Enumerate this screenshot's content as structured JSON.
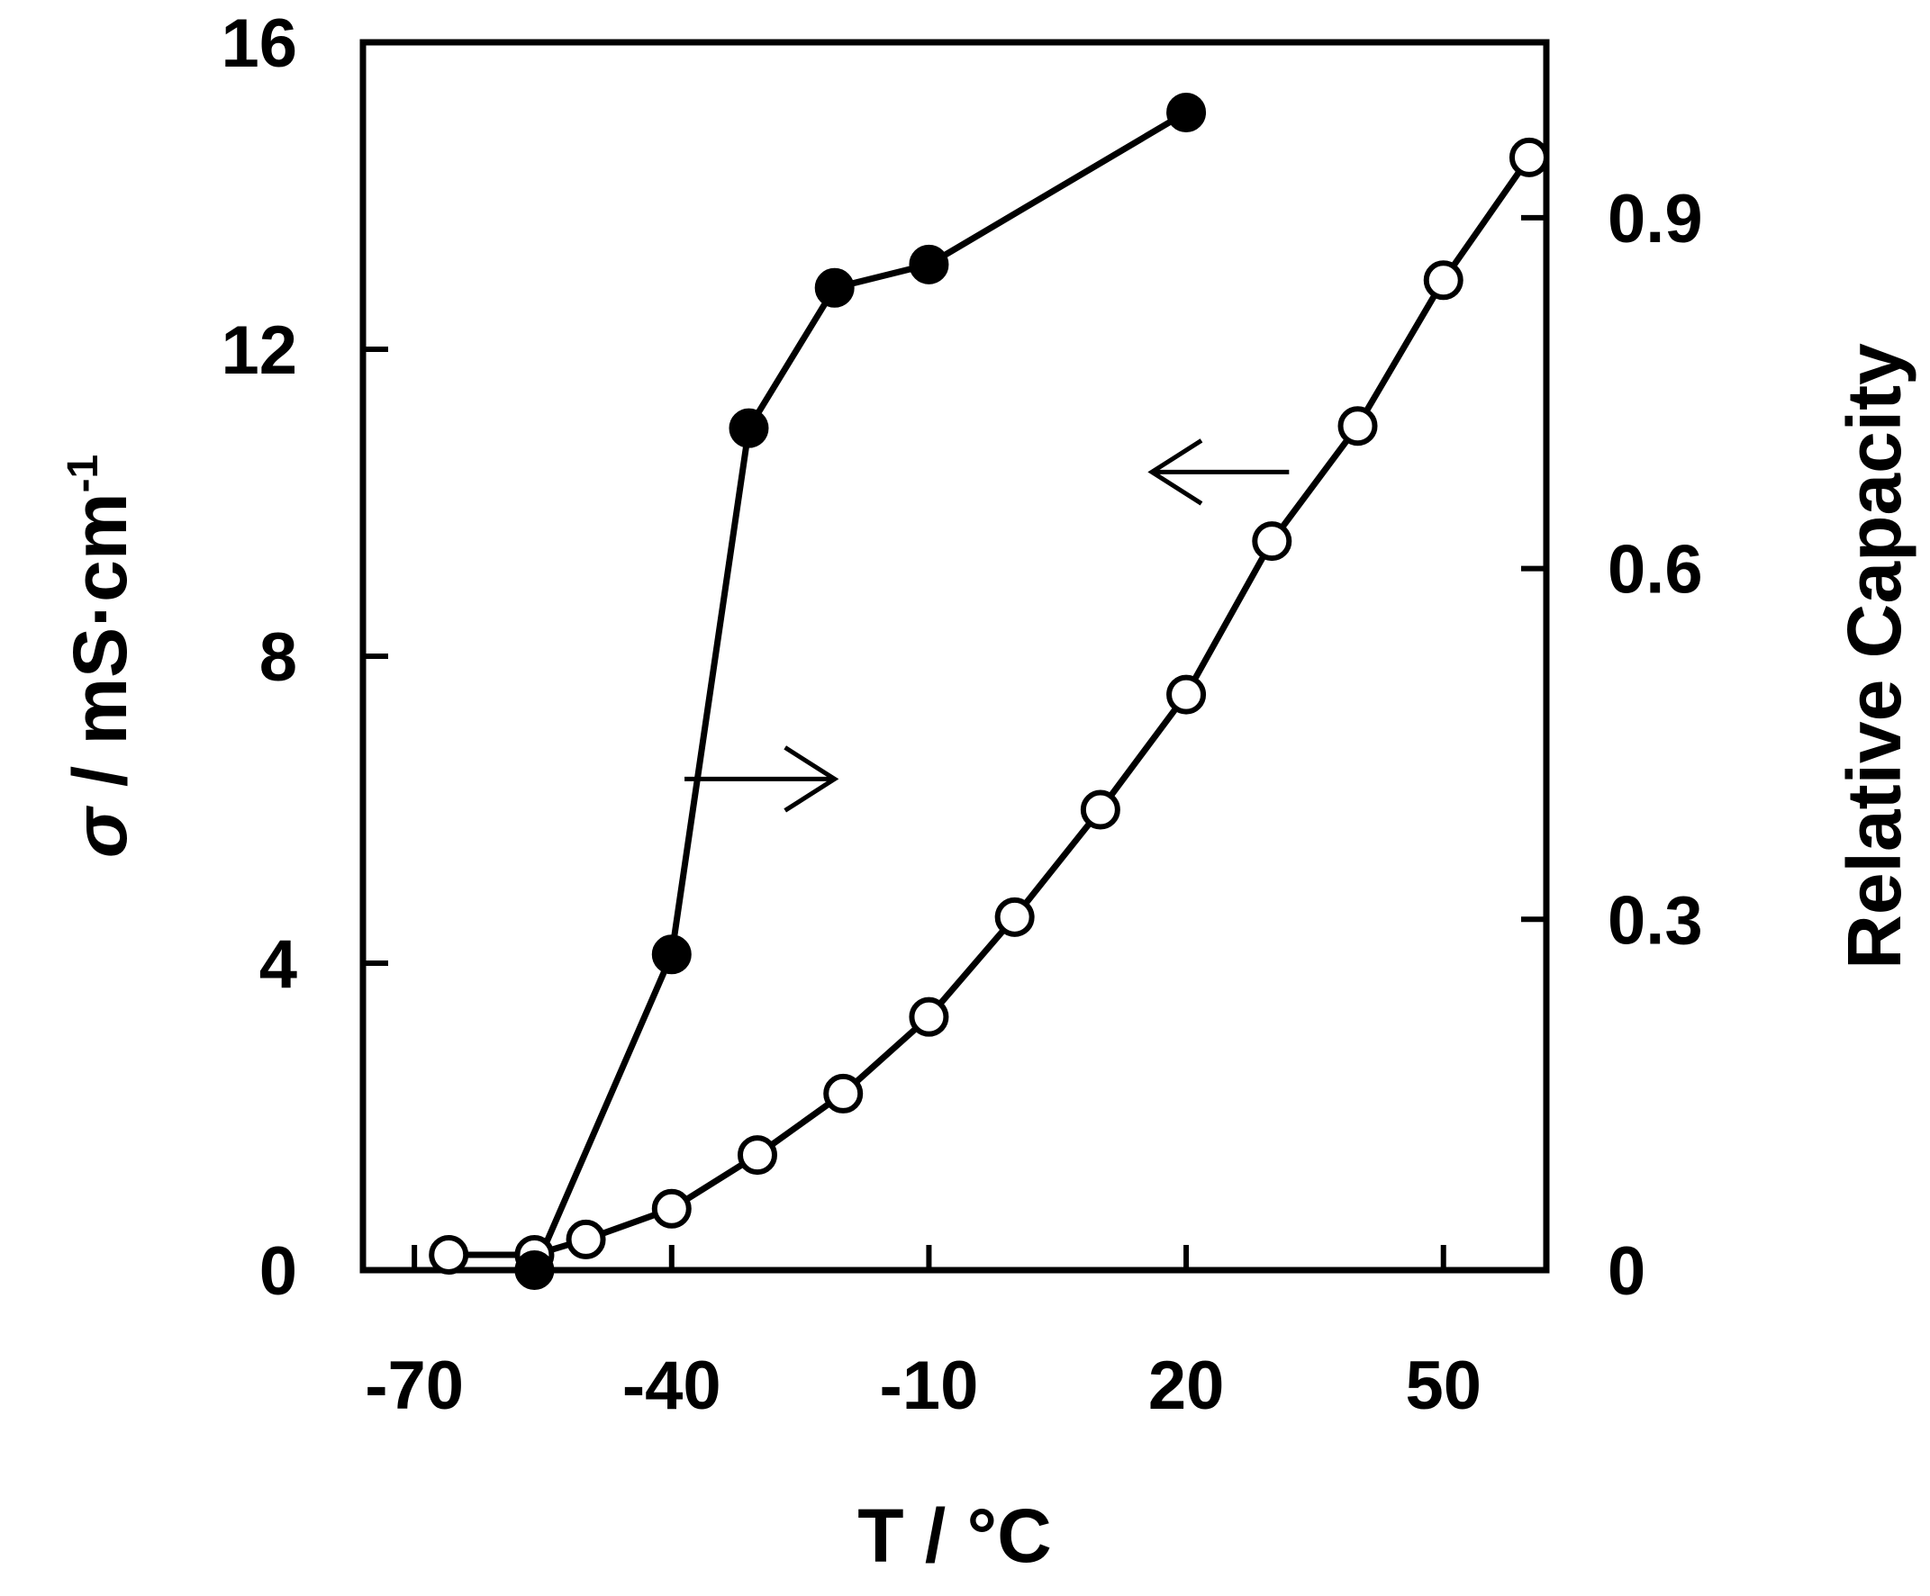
{
  "chart_data": {
    "type": "line",
    "x_axis": {
      "label": "T / °C",
      "range": [
        -76,
        62
      ],
      "ticks": [
        -70,
        -40,
        -10,
        20,
        50
      ],
      "tick_labels": [
        "-70",
        "-40",
        "-10",
        "20",
        "50"
      ]
    },
    "y_axis_left": {
      "label_symbol": "σ",
      "label_rest": " / mS·cm",
      "label_superscript": "-1",
      "range": [
        0,
        16
      ],
      "ticks": [
        0,
        4,
        8,
        12,
        16
      ],
      "tick_labels": [
        "0",
        "4",
        "8",
        "12",
        "16"
      ]
    },
    "y_axis_right": {
      "label": "Relative Capacity",
      "range": [
        0,
        1.05
      ],
      "ticks": [
        0,
        0.3,
        0.6,
        0.9
      ],
      "tick_labels": [
        "0",
        "0.3",
        "0.6",
        "0.9"
      ]
    },
    "grid": false,
    "series": [
      {
        "axis": "left",
        "marker": "open-circle",
        "color": "#000000",
        "x": [
          -66,
          -56,
          -50,
          -40,
          -30,
          -20,
          -10,
          0,
          10,
          20,
          30,
          40,
          50,
          60
        ],
        "y": [
          0.2,
          0.2,
          0.4,
          0.8,
          1.5,
          2.3,
          3.3,
          4.6,
          6.0,
          7.5,
          9.5,
          11.0,
          12.9,
          14.5
        ]
      },
      {
        "axis": "right",
        "marker": "filled-circle",
        "color": "#000000",
        "x": [
          -56,
          -40,
          -31,
          -21,
          -10,
          20
        ],
        "y": [
          0.0,
          0.27,
          0.72,
          0.84,
          0.86,
          0.99
        ]
      }
    ],
    "annotations": [
      {
        "type": "arrow",
        "direction": "right",
        "points_to_axis": "right"
      },
      {
        "type": "arrow",
        "direction": "left",
        "points_to_axis": "left"
      }
    ]
  }
}
